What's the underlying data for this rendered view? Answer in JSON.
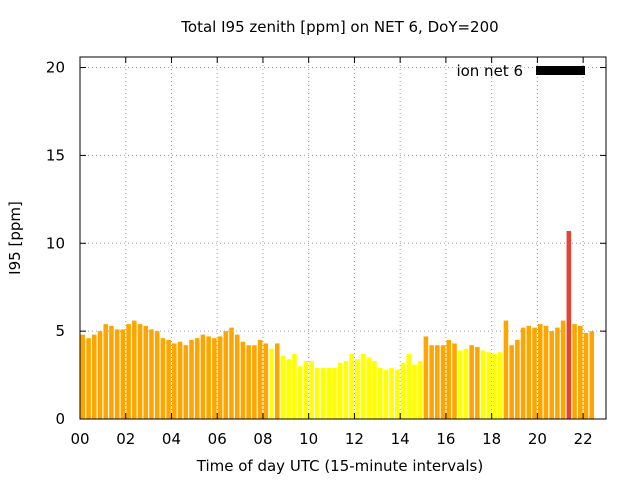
{
  "chart_data": {
    "type": "bar",
    "title": "Total I95 zenith [ppm] on NET 6, DoY=200",
    "xlabel": "Time of day UTC (15-minute intervals)",
    "ylabel": "I95 [ppm]",
    "xlim": [
      0,
      23
    ],
    "ylim": [
      0,
      20.6
    ],
    "x_tick_labels": [
      "00",
      "02",
      "04",
      "06",
      "08",
      "10",
      "12",
      "14",
      "16",
      "18",
      "20",
      "22"
    ],
    "x_tick_values": [
      0,
      2,
      4,
      6,
      8,
      10,
      12,
      14,
      16,
      18,
      20,
      22
    ],
    "y_tick_values": [
      0,
      5,
      10,
      15,
      20
    ],
    "grid": true,
    "legend": {
      "label": "ion net 6",
      "placement": "top-right",
      "color": "#000000"
    },
    "colors": {
      "orange": "#ffa500",
      "yellow": "#ffff00",
      "red": "#e34234"
    },
    "bar_width_hours": 0.2,
    "bars": [
      {
        "t": 0.0,
        "v": 4.8,
        "c": "orange"
      },
      {
        "t": 0.25,
        "v": 4.6,
        "c": "orange"
      },
      {
        "t": 0.5,
        "v": 4.8,
        "c": "orange"
      },
      {
        "t": 0.75,
        "v": 5.0,
        "c": "orange"
      },
      {
        "t": 1.0,
        "v": 5.4,
        "c": "orange"
      },
      {
        "t": 1.25,
        "v": 5.3,
        "c": "orange"
      },
      {
        "t": 1.5,
        "v": 5.1,
        "c": "orange"
      },
      {
        "t": 1.75,
        "v": 5.1,
        "c": "orange"
      },
      {
        "t": 2.0,
        "v": 5.4,
        "c": "orange"
      },
      {
        "t": 2.25,
        "v": 5.6,
        "c": "orange"
      },
      {
        "t": 2.5,
        "v": 5.4,
        "c": "orange"
      },
      {
        "t": 2.75,
        "v": 5.3,
        "c": "orange"
      },
      {
        "t": 3.0,
        "v": 5.1,
        "c": "orange"
      },
      {
        "t": 3.25,
        "v": 5.0,
        "c": "orange"
      },
      {
        "t": 3.5,
        "v": 4.6,
        "c": "orange"
      },
      {
        "t": 3.75,
        "v": 4.5,
        "c": "orange"
      },
      {
        "t": 4.0,
        "v": 4.3,
        "c": "orange"
      },
      {
        "t": 4.25,
        "v": 4.4,
        "c": "orange"
      },
      {
        "t": 4.5,
        "v": 4.2,
        "c": "orange"
      },
      {
        "t": 4.75,
        "v": 4.5,
        "c": "orange"
      },
      {
        "t": 5.0,
        "v": 4.6,
        "c": "orange"
      },
      {
        "t": 5.25,
        "v": 4.8,
        "c": "orange"
      },
      {
        "t": 5.5,
        "v": 4.7,
        "c": "orange"
      },
      {
        "t": 5.75,
        "v": 4.6,
        "c": "orange"
      },
      {
        "t": 6.0,
        "v": 4.7,
        "c": "orange"
      },
      {
        "t": 6.25,
        "v": 5.0,
        "c": "orange"
      },
      {
        "t": 6.5,
        "v": 5.2,
        "c": "orange"
      },
      {
        "t": 6.75,
        "v": 4.8,
        "c": "orange"
      },
      {
        "t": 7.0,
        "v": 4.4,
        "c": "orange"
      },
      {
        "t": 7.25,
        "v": 4.2,
        "c": "orange"
      },
      {
        "t": 7.5,
        "v": 4.2,
        "c": "orange"
      },
      {
        "t": 7.75,
        "v": 4.5,
        "c": "orange"
      },
      {
        "t": 8.0,
        "v": 4.3,
        "c": "orange"
      },
      {
        "t": 8.25,
        "v": 4.0,
        "c": "yellow"
      },
      {
        "t": 8.5,
        "v": 4.3,
        "c": "orange"
      },
      {
        "t": 8.75,
        "v": 3.6,
        "c": "yellow"
      },
      {
        "t": 9.0,
        "v": 3.4,
        "c": "yellow"
      },
      {
        "t": 9.25,
        "v": 3.7,
        "c": "yellow"
      },
      {
        "t": 9.5,
        "v": 3.0,
        "c": "yellow"
      },
      {
        "t": 9.75,
        "v": 3.3,
        "c": "yellow"
      },
      {
        "t": 10.0,
        "v": 3.3,
        "c": "yellow"
      },
      {
        "t": 10.25,
        "v": 2.9,
        "c": "yellow"
      },
      {
        "t": 10.5,
        "v": 2.9,
        "c": "yellow"
      },
      {
        "t": 10.75,
        "v": 2.9,
        "c": "yellow"
      },
      {
        "t": 11.0,
        "v": 2.9,
        "c": "yellow"
      },
      {
        "t": 11.25,
        "v": 3.2,
        "c": "yellow"
      },
      {
        "t": 11.5,
        "v": 3.3,
        "c": "yellow"
      },
      {
        "t": 11.75,
        "v": 3.7,
        "c": "yellow"
      },
      {
        "t": 12.0,
        "v": 3.4,
        "c": "yellow"
      },
      {
        "t": 12.25,
        "v": 3.7,
        "c": "yellow"
      },
      {
        "t": 12.5,
        "v": 3.5,
        "c": "yellow"
      },
      {
        "t": 12.75,
        "v": 3.3,
        "c": "yellow"
      },
      {
        "t": 13.0,
        "v": 2.9,
        "c": "yellow"
      },
      {
        "t": 13.25,
        "v": 2.8,
        "c": "yellow"
      },
      {
        "t": 13.5,
        "v": 2.9,
        "c": "yellow"
      },
      {
        "t": 13.75,
        "v": 2.8,
        "c": "yellow"
      },
      {
        "t": 14.0,
        "v": 3.2,
        "c": "yellow"
      },
      {
        "t": 14.25,
        "v": 3.7,
        "c": "yellow"
      },
      {
        "t": 14.5,
        "v": 3.1,
        "c": "yellow"
      },
      {
        "t": 14.75,
        "v": 3.3,
        "c": "yellow"
      },
      {
        "t": 15.0,
        "v": 4.7,
        "c": "orange"
      },
      {
        "t": 15.25,
        "v": 4.2,
        "c": "orange"
      },
      {
        "t": 15.5,
        "v": 4.2,
        "c": "orange"
      },
      {
        "t": 15.75,
        "v": 4.2,
        "c": "orange"
      },
      {
        "t": 16.0,
        "v": 4.5,
        "c": "orange"
      },
      {
        "t": 16.25,
        "v": 4.3,
        "c": "orange"
      },
      {
        "t": 16.5,
        "v": 3.9,
        "c": "yellow"
      },
      {
        "t": 16.75,
        "v": 4.0,
        "c": "yellow"
      },
      {
        "t": 17.0,
        "v": 4.2,
        "c": "orange"
      },
      {
        "t": 17.25,
        "v": 4.1,
        "c": "orange"
      },
      {
        "t": 17.5,
        "v": 3.9,
        "c": "yellow"
      },
      {
        "t": 17.75,
        "v": 3.8,
        "c": "yellow"
      },
      {
        "t": 18.0,
        "v": 3.7,
        "c": "yellow"
      },
      {
        "t": 18.25,
        "v": 3.8,
        "c": "yellow"
      },
      {
        "t": 18.5,
        "v": 5.6,
        "c": "orange"
      },
      {
        "t": 18.75,
        "v": 4.2,
        "c": "orange"
      },
      {
        "t": 19.0,
        "v": 4.5,
        "c": "orange"
      },
      {
        "t": 19.25,
        "v": 5.2,
        "c": "orange"
      },
      {
        "t": 19.5,
        "v": 5.3,
        "c": "orange"
      },
      {
        "t": 19.75,
        "v": 5.2,
        "c": "orange"
      },
      {
        "t": 20.0,
        "v": 5.4,
        "c": "orange"
      },
      {
        "t": 20.25,
        "v": 5.3,
        "c": "orange"
      },
      {
        "t": 20.5,
        "v": 5.0,
        "c": "orange"
      },
      {
        "t": 20.75,
        "v": 5.2,
        "c": "orange"
      },
      {
        "t": 21.0,
        "v": 5.6,
        "c": "orange"
      },
      {
        "t": 21.25,
        "v": 10.7,
        "c": "red"
      },
      {
        "t": 21.5,
        "v": 5.4,
        "c": "orange"
      },
      {
        "t": 21.75,
        "v": 5.3,
        "c": "orange"
      },
      {
        "t": 22.0,
        "v": 4.9,
        "c": "orange"
      },
      {
        "t": 22.25,
        "v": 5.0,
        "c": "orange"
      }
    ]
  }
}
